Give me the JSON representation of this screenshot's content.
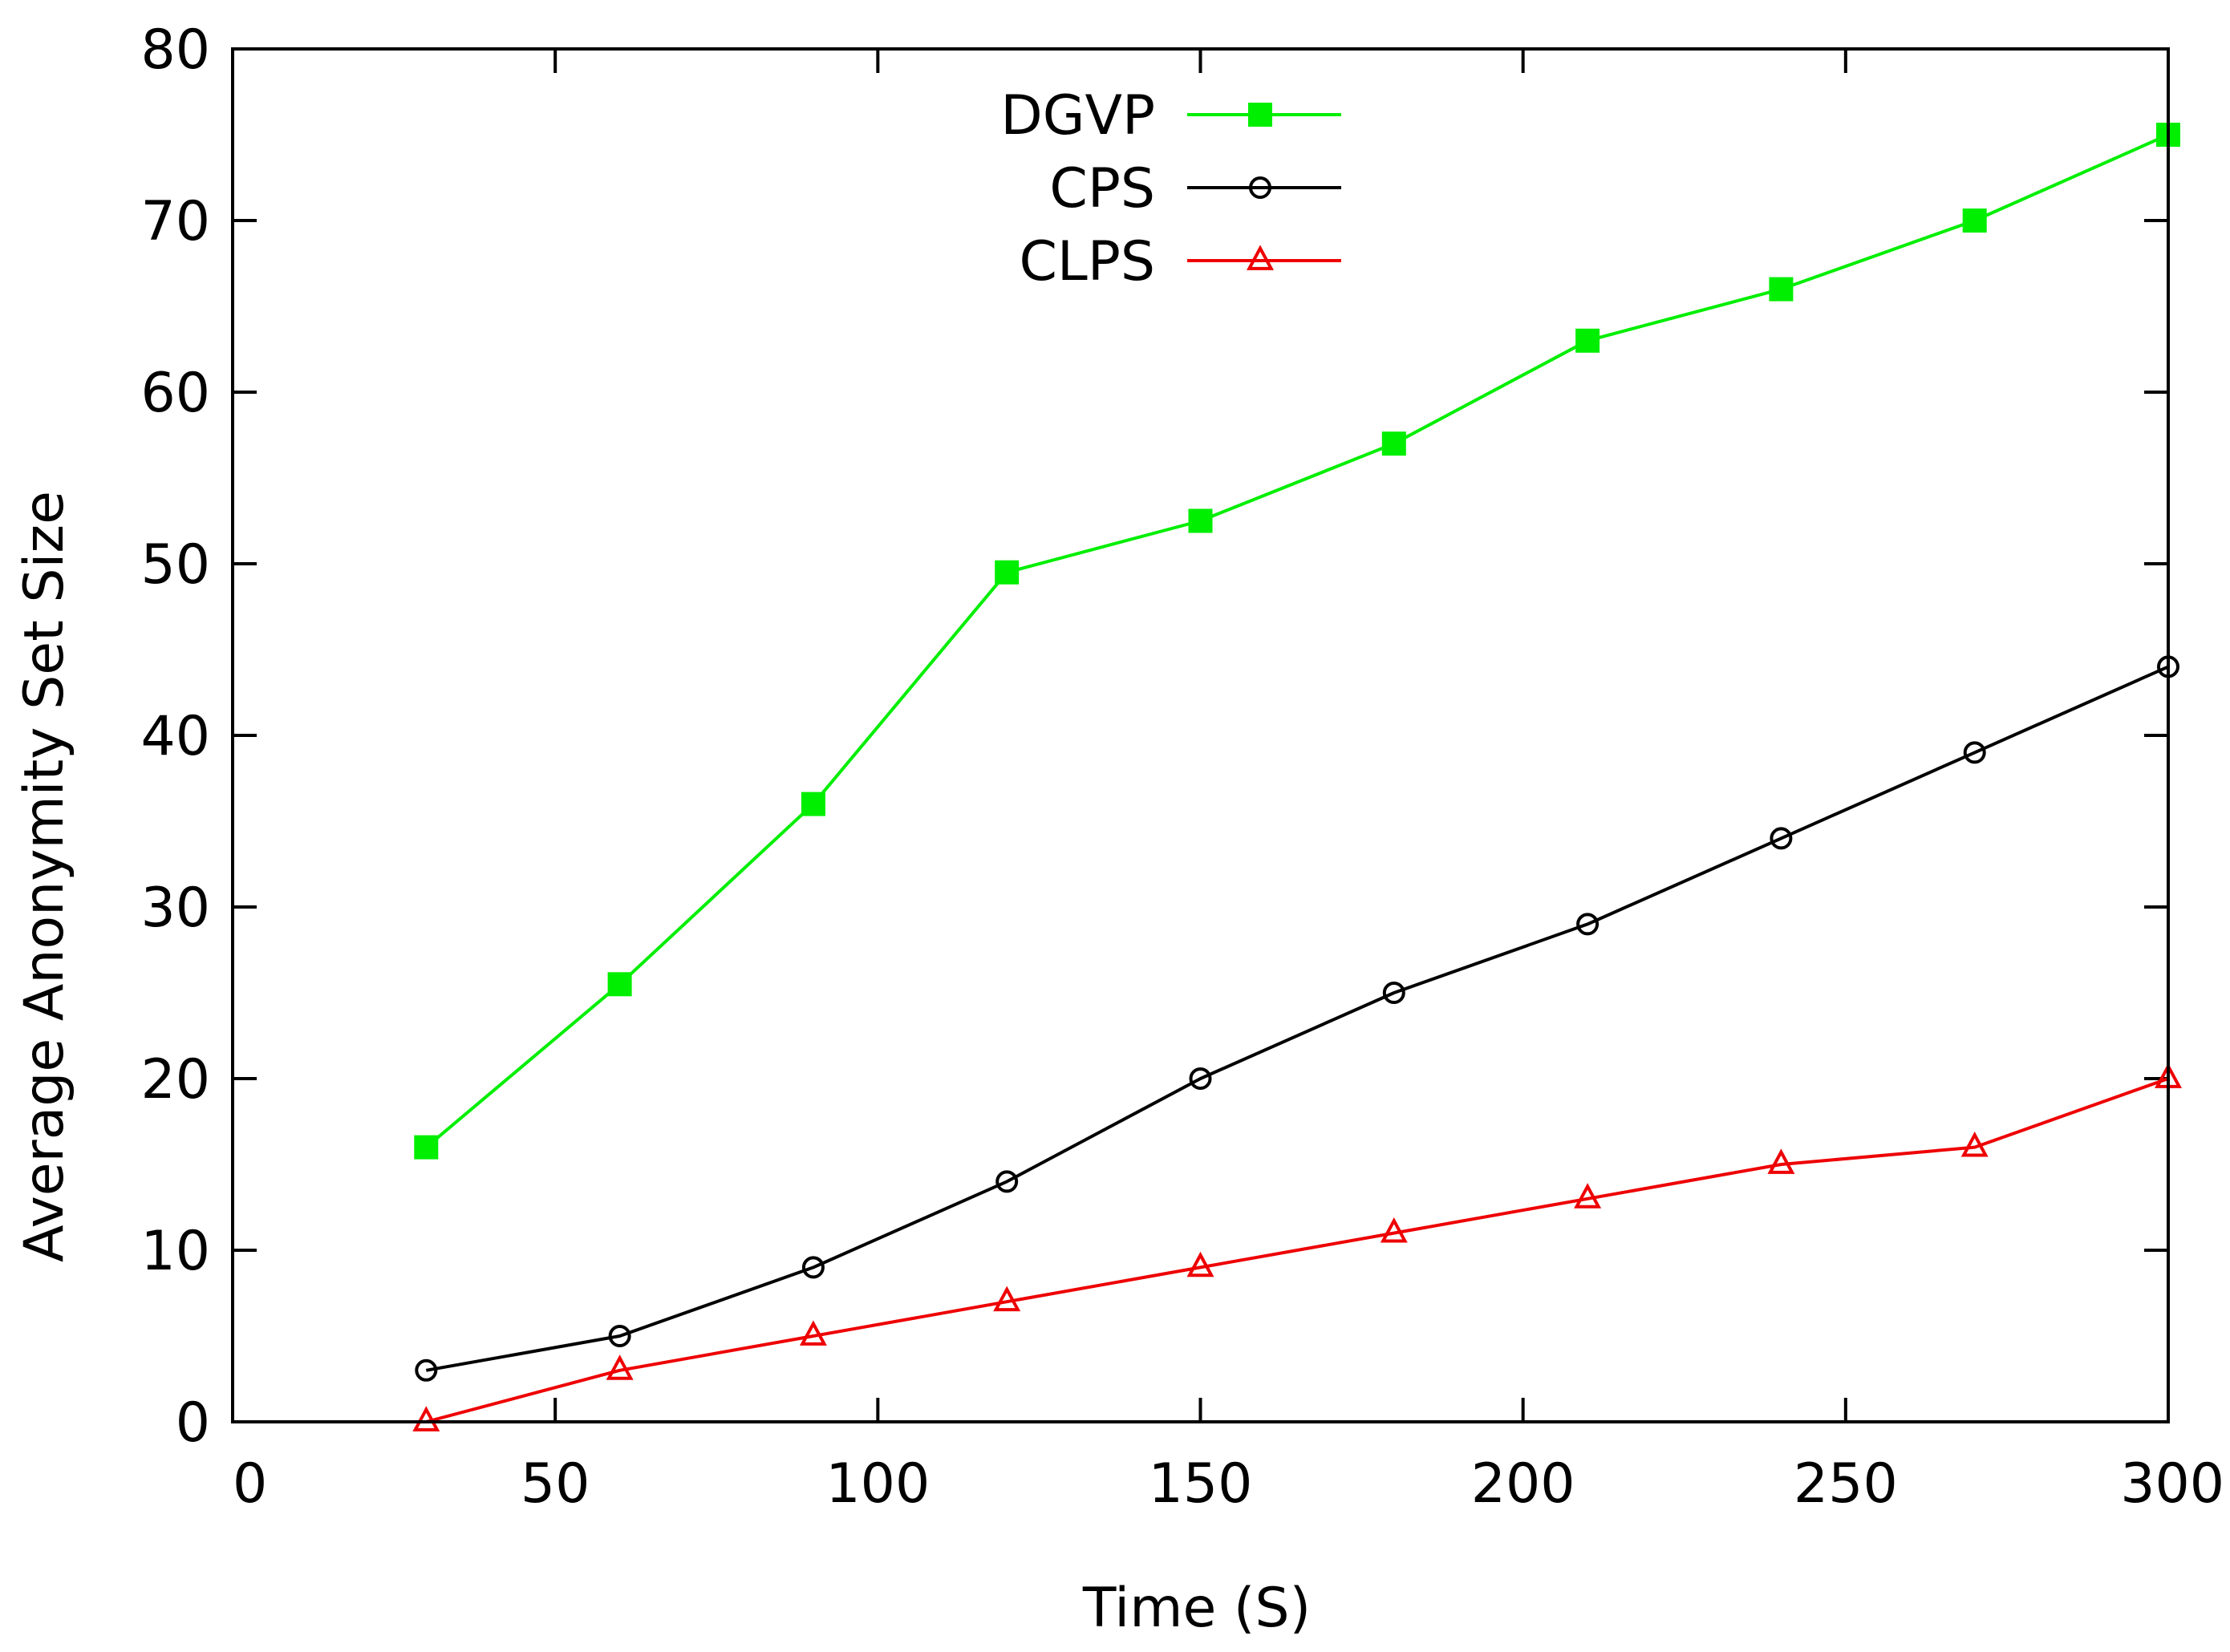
{
  "chart_data": {
    "type": "line",
    "title": "",
    "xlabel": "Time (S)",
    "ylabel": "Average Anonymity Set Size",
    "xlim": [
      0,
      300
    ],
    "ylim": [
      0,
      80
    ],
    "xticks": [
      0,
      50,
      100,
      150,
      200,
      250,
      300
    ],
    "yticks": [
      0,
      10,
      20,
      30,
      40,
      50,
      60,
      70,
      80
    ],
    "grid": false,
    "legend_position": "top-center",
    "x": [
      30,
      60,
      90,
      120,
      150,
      180,
      210,
      240,
      270,
      300
    ],
    "series": [
      {
        "name": "DGVP",
        "color": "#00ee00",
        "marker": "filled-square",
        "values": [
          16,
          25.5,
          36,
          49.5,
          52.5,
          57,
          63,
          66,
          70,
          75
        ]
      },
      {
        "name": "CPS",
        "color": "#000000",
        "marker": "open-circle",
        "values": [
          3,
          5,
          9,
          14,
          20,
          25,
          29,
          34,
          39,
          44
        ]
      },
      {
        "name": "CLPS",
        "color": "#ee0000",
        "marker": "open-triangle",
        "values": [
          0,
          3,
          5,
          7,
          9,
          11,
          13,
          15,
          16,
          20
        ]
      }
    ]
  }
}
